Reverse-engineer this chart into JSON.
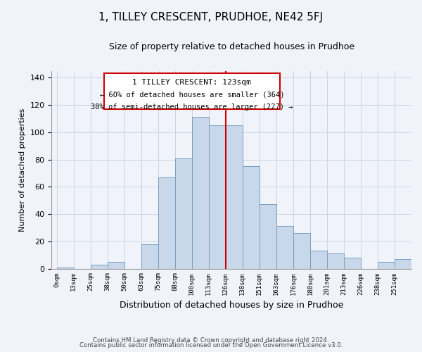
{
  "title": "1, TILLEY CRESCENT, PRUDHOE, NE42 5FJ",
  "subtitle": "Size of property relative to detached houses in Prudhoe",
  "xlabel": "Distribution of detached houses by size in Prudhoe",
  "ylabel": "Number of detached properties",
  "bin_labels": [
    "0sqm",
    "13sqm",
    "25sqm",
    "38sqm",
    "50sqm",
    "63sqm",
    "75sqm",
    "88sqm",
    "100sqm",
    "113sqm",
    "126sqm",
    "138sqm",
    "151sqm",
    "163sqm",
    "176sqm",
    "188sqm",
    "201sqm",
    "213sqm",
    "226sqm",
    "238sqm",
    "251sqm"
  ],
  "bar_heights": [
    1,
    0,
    3,
    5,
    0,
    18,
    67,
    81,
    111,
    105,
    105,
    75,
    47,
    31,
    26,
    13,
    11,
    8,
    0,
    5,
    7
  ],
  "bar_color": "#c8d8ea",
  "bar_edge_color": "#7a9fc0",
  "property_line_color": "#cc0000",
  "property_line_bin_index": 10,
  "annotation_title": "1 TILLEY CRESCENT: 123sqm",
  "annotation_line1": "← 60% of detached houses are smaller (364)",
  "annotation_line2": "38% of semi-detached houses are larger (227) →",
  "annotation_box_color": "#cc0000",
  "ylim": [
    0,
    145
  ],
  "yticks": [
    0,
    20,
    40,
    60,
    80,
    100,
    120,
    140
  ],
  "footnote1": "Contains HM Land Registry data © Crown copyright and database right 2024.",
  "footnote2": "Contains public sector information licensed under the Open Government Licence v3.0.",
  "background_color": "#f0f4fa",
  "grid_color": "#c8d4e4"
}
